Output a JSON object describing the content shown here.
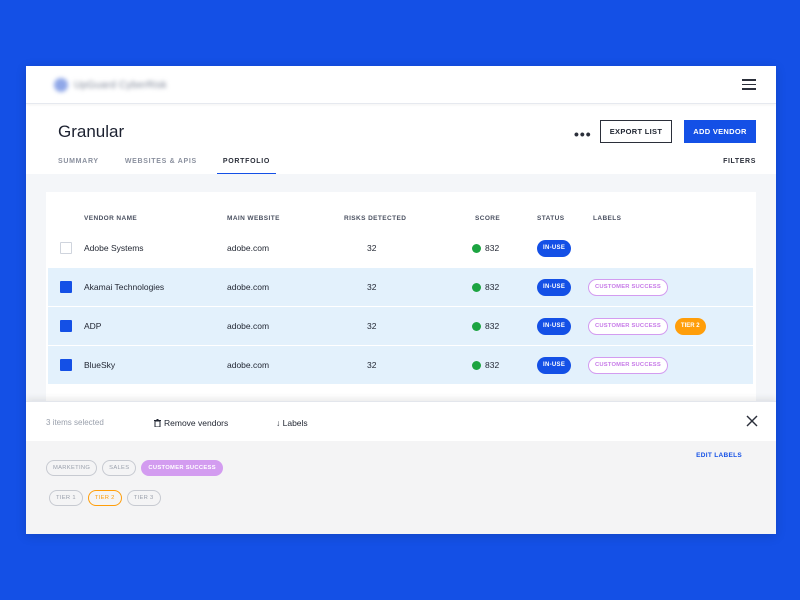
{
  "brand": {
    "logo_text": "UpGuard CyberRisk"
  },
  "page": {
    "title": "Granular"
  },
  "header_actions": {
    "more": "•••",
    "export": "EXPORT LIST",
    "add": "ADD VENDOR"
  },
  "tabs": [
    {
      "label": "SUMMARY"
    },
    {
      "label": "WEBSITES & APIS"
    },
    {
      "label": "PORTFOLIO",
      "active": true
    }
  ],
  "filters_label": "FILTERS",
  "table": {
    "columns": [
      "VENDOR NAME",
      "MAIN WEBSITE",
      "RISKS DETECTED",
      "SCORE",
      "STATUS",
      "LABELS"
    ],
    "rows": [
      {
        "name": "Adobe Systems",
        "website": "adobe.com",
        "risks": "32",
        "score": "832",
        "status": "IN-USE",
        "selected": false,
        "labels": []
      },
      {
        "name": "Akamai Technologies",
        "website": "adobe.com",
        "risks": "32",
        "score": "832",
        "status": "IN-USE",
        "selected": true,
        "labels": [
          "CUSTOMER SUCCESS"
        ]
      },
      {
        "name": "ADP",
        "website": "adobe.com",
        "risks": "32",
        "score": "832",
        "status": "IN-USE",
        "selected": true,
        "labels": [
          "CUSTOMER SUCCESS",
          "TIER 2"
        ]
      },
      {
        "name": "BlueSky",
        "website": "adobe.com",
        "risks": "32",
        "score": "832",
        "status": "IN-USE",
        "selected": true,
        "labels": [
          "CUSTOMER SUCCESS"
        ]
      }
    ]
  },
  "selection_bar": {
    "count_text": "3 items selected",
    "remove_label": "Remove vendors",
    "labels_label": "↓ Labels",
    "edit_labels": "EDIT LABELS",
    "label_group_1": [
      "MARKETING",
      "SALES",
      "CUSTOMER SUCCESS"
    ],
    "label_group_2": [
      "TIER 1",
      "TIER 2",
      "TIER 3"
    ]
  },
  "colors": {
    "brand_blue": "#1450e6",
    "score_green": "#1ca441",
    "label_purple": "#d39cf0",
    "tier_orange": "#ff9e0a",
    "selected_row": "#e3f1fc"
  }
}
